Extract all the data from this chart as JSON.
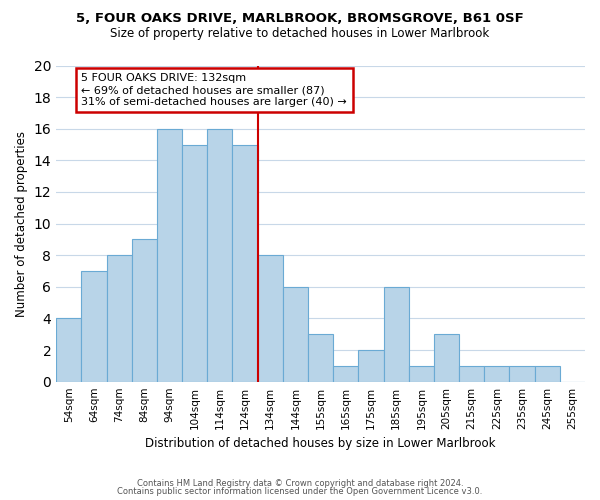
{
  "title": "5, FOUR OAKS DRIVE, MARLBROOK, BROMSGROVE, B61 0SF",
  "subtitle": "Size of property relative to detached houses in Lower Marlbrook",
  "xlabel": "Distribution of detached houses by size in Lower Marlbrook",
  "ylabel": "Number of detached properties",
  "bin_labels": [
    "54sqm",
    "64sqm",
    "74sqm",
    "84sqm",
    "94sqm",
    "104sqm",
    "114sqm",
    "124sqm",
    "134sqm",
    "144sqm",
    "155sqm",
    "165sqm",
    "175sqm",
    "185sqm",
    "195sqm",
    "205sqm",
    "215sqm",
    "225sqm",
    "235sqm",
    "245sqm",
    "255sqm"
  ],
  "bar_heights": [
    4,
    7,
    8,
    9,
    16,
    15,
    16,
    15,
    8,
    6,
    3,
    1,
    2,
    6,
    1,
    3,
    1,
    1,
    1,
    1,
    0
  ],
  "bar_color": "#b8d4e8",
  "bar_edge_color": "#6aaad4",
  "vline_color": "#cc0000",
  "annotation_title": "5 FOUR OAKS DRIVE: 132sqm",
  "annotation_line1": "← 69% of detached houses are smaller (87)",
  "annotation_line2": "31% of semi-detached houses are larger (40) →",
  "annotation_box_color": "#ffffff",
  "annotation_box_edge": "#cc0000",
  "ylim": [
    0,
    20
  ],
  "yticks": [
    0,
    2,
    4,
    6,
    8,
    10,
    12,
    14,
    16,
    18,
    20
  ],
  "footer1": "Contains HM Land Registry data © Crown copyright and database right 2024.",
  "footer2": "Contains public sector information licensed under the Open Government Licence v3.0.",
  "background_color": "#ffffff",
  "grid_color": "#c8d8e8"
}
